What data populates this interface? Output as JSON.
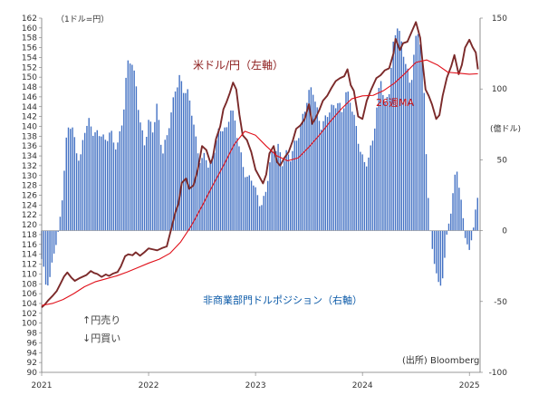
{
  "chart_data": {
    "type": "bar+line",
    "left_axis": {
      "unit_label": "（1ドル=円）",
      "min": 90,
      "max": 162,
      "step": 2,
      "ticks": [
        90,
        92,
        94,
        96,
        98,
        100,
        102,
        104,
        106,
        108,
        110,
        112,
        114,
        116,
        118,
        120,
        122,
        124,
        126,
        128,
        130,
        132,
        134,
        136,
        138,
        140,
        142,
        144,
        146,
        148,
        150,
        152,
        154,
        156,
        158,
        160,
        162
      ]
    },
    "right_axis": {
      "unit_label": "(億ドル)",
      "min": -100,
      "max": 150,
      "ticks": [
        -100,
        -50,
        0,
        50,
        100,
        150
      ]
    },
    "x_axis": {
      "min": 2021.0,
      "max": 2025.1,
      "ticks": [
        {
          "value": 2021,
          "label": "2021"
        },
        {
          "value": 2022,
          "label": "2022"
        },
        {
          "value": 2023,
          "label": "2023"
        },
        {
          "value": 2024,
          "label": "2024"
        },
        {
          "value": 2025,
          "label": "2025"
        }
      ]
    },
    "series": [
      {
        "name": "米ドル/円（左軸）",
        "kind": "line",
        "axis": "left",
        "color": "#7b2a2a",
        "points": [
          [
            2021.0,
            103.2
          ],
          [
            2021.03,
            103.8
          ],
          [
            2021.06,
            104.6
          ],
          [
            2021.1,
            105.5
          ],
          [
            2021.14,
            106.5
          ],
          [
            2021.18,
            108.2
          ],
          [
            2021.21,
            109.5
          ],
          [
            2021.24,
            110.3
          ],
          [
            2021.28,
            109.2
          ],
          [
            2021.31,
            108.6
          ],
          [
            2021.35,
            109.1
          ],
          [
            2021.38,
            109.4
          ],
          [
            2021.42,
            109.8
          ],
          [
            2021.46,
            110.6
          ],
          [
            2021.49,
            110.2
          ],
          [
            2021.52,
            110.0
          ],
          [
            2021.56,
            109.4
          ],
          [
            2021.6,
            109.9
          ],
          [
            2021.63,
            109.6
          ],
          [
            2021.67,
            110.1
          ],
          [
            2021.71,
            110.4
          ],
          [
            2021.74,
            111.5
          ],
          [
            2021.78,
            113.6
          ],
          [
            2021.81,
            114.0
          ],
          [
            2021.85,
            113.8
          ],
          [
            2021.88,
            114.4
          ],
          [
            2021.92,
            113.7
          ],
          [
            2021.96,
            114.4
          ],
          [
            2022.0,
            115.2
          ],
          [
            2022.04,
            115.0
          ],
          [
            2022.08,
            114.8
          ],
          [
            2022.13,
            115.3
          ],
          [
            2022.17,
            115.6
          ],
          [
            2022.21,
            119.0
          ],
          [
            2022.25,
            122.5
          ],
          [
            2022.28,
            124.3
          ],
          [
            2022.31,
            128.5
          ],
          [
            2022.35,
            129.4
          ],
          [
            2022.38,
            127.3
          ],
          [
            2022.42,
            128.0
          ],
          [
            2022.46,
            131.2
          ],
          [
            2022.5,
            136.0
          ],
          [
            2022.54,
            135.2
          ],
          [
            2022.58,
            132.5
          ],
          [
            2022.6,
            133.6
          ],
          [
            2022.63,
            137.4
          ],
          [
            2022.67,
            140.0
          ],
          [
            2022.7,
            143.5
          ],
          [
            2022.73,
            145.0
          ],
          [
            2022.76,
            146.8
          ],
          [
            2022.79,
            148.9
          ],
          [
            2022.82,
            147.5
          ],
          [
            2022.85,
            142.3
          ],
          [
            2022.88,
            138.2
          ],
          [
            2022.92,
            137.2
          ],
          [
            2022.96,
            134.8
          ],
          [
            2023.0,
            131.2
          ],
          [
            2023.04,
            129.6
          ],
          [
            2023.07,
            128.4
          ],
          [
            2023.1,
            130.2
          ],
          [
            2023.13,
            134.5
          ],
          [
            2023.17,
            136.0
          ],
          [
            2023.2,
            132.8
          ],
          [
            2023.23,
            132.0
          ],
          [
            2023.27,
            133.6
          ],
          [
            2023.31,
            134.8
          ],
          [
            2023.35,
            137.2
          ],
          [
            2023.38,
            139.5
          ],
          [
            2023.42,
            140.2
          ],
          [
            2023.46,
            141.5
          ],
          [
            2023.5,
            144.5
          ],
          [
            2023.53,
            140.5
          ],
          [
            2023.56,
            141.6
          ],
          [
            2023.6,
            143.5
          ],
          [
            2023.63,
            145.2
          ],
          [
            2023.67,
            146.2
          ],
          [
            2023.71,
            147.8
          ],
          [
            2023.75,
            149.2
          ],
          [
            2023.79,
            149.8
          ],
          [
            2023.83,
            150.2
          ],
          [
            2023.86,
            151.6
          ],
          [
            2023.89,
            148.4
          ],
          [
            2023.92,
            147.2
          ],
          [
            2023.96,
            142.0
          ],
          [
            2024.0,
            141.5
          ],
          [
            2024.04,
            145.2
          ],
          [
            2024.08,
            147.4
          ],
          [
            2024.13,
            149.8
          ],
          [
            2024.17,
            150.4
          ],
          [
            2024.21,
            151.4
          ],
          [
            2024.25,
            151.8
          ],
          [
            2024.29,
            154.8
          ],
          [
            2024.31,
            157.8
          ],
          [
            2024.35,
            155.5
          ],
          [
            2024.38,
            156.9
          ],
          [
            2024.42,
            157.2
          ],
          [
            2024.46,
            159.2
          ],
          [
            2024.5,
            161.2
          ],
          [
            2024.54,
            158.0
          ],
          [
            2024.56,
            153.5
          ],
          [
            2024.59,
            147.5
          ],
          [
            2024.62,
            146.2
          ],
          [
            2024.65,
            144.5
          ],
          [
            2024.69,
            141.5
          ],
          [
            2024.72,
            142.3
          ],
          [
            2024.75,
            146.2
          ],
          [
            2024.79,
            149.9
          ],
          [
            2024.83,
            152.2
          ],
          [
            2024.86,
            154.5
          ],
          [
            2024.9,
            150.6
          ],
          [
            2024.93,
            152.5
          ],
          [
            2024.96,
            156.0
          ],
          [
            2025.0,
            157.6
          ],
          [
            2025.03,
            156.1
          ],
          [
            2025.06,
            155.0
          ],
          [
            2025.08,
            151.6
          ]
        ]
      },
      {
        "name": "26週MA",
        "kind": "line",
        "axis": "left",
        "color": "#e0101a",
        "points": [
          [
            2021.0,
            103.6
          ],
          [
            2021.1,
            104.0
          ],
          [
            2021.2,
            104.8
          ],
          [
            2021.3,
            106.0
          ],
          [
            2021.4,
            107.4
          ],
          [
            2021.5,
            108.4
          ],
          [
            2021.6,
            109.0
          ],
          [
            2021.7,
            109.6
          ],
          [
            2021.8,
            110.4
          ],
          [
            2021.9,
            111.3
          ],
          [
            2022.0,
            112.2
          ],
          [
            2022.1,
            113.0
          ],
          [
            2022.2,
            114.2
          ],
          [
            2022.3,
            116.5
          ],
          [
            2022.4,
            119.8
          ],
          [
            2022.5,
            123.8
          ],
          [
            2022.6,
            128.0
          ],
          [
            2022.7,
            132.0
          ],
          [
            2022.8,
            136.3
          ],
          [
            2022.9,
            139.0
          ],
          [
            2023.0,
            138.2
          ],
          [
            2023.1,
            136.0
          ],
          [
            2023.2,
            134.0
          ],
          [
            2023.3,
            133.0
          ],
          [
            2023.4,
            133.6
          ],
          [
            2023.5,
            135.8
          ],
          [
            2023.6,
            138.3
          ],
          [
            2023.7,
            141.0
          ],
          [
            2023.8,
            143.5
          ],
          [
            2023.9,
            145.6
          ],
          [
            2024.0,
            146.2
          ],
          [
            2024.1,
            146.3
          ],
          [
            2024.2,
            147.3
          ],
          [
            2024.3,
            148.8
          ],
          [
            2024.4,
            150.8
          ],
          [
            2024.5,
            153.0
          ],
          [
            2024.6,
            153.5
          ],
          [
            2024.7,
            152.5
          ],
          [
            2024.8,
            151.0
          ],
          [
            2024.9,
            150.8
          ],
          [
            2025.0,
            150.6
          ],
          [
            2025.08,
            150.7
          ]
        ]
      },
      {
        "name": "非商業部門ドルポジション（右軸）",
        "kind": "bar",
        "axis": "right",
        "color": "#4472c4",
        "anchors": [
          [
            2021.0,
            -20
          ],
          [
            2021.04,
            -40
          ],
          [
            2021.08,
            -35
          ],
          [
            2021.12,
            -10
          ],
          [
            2021.16,
            0
          ],
          [
            2021.2,
            30
          ],
          [
            2021.24,
            70
          ],
          [
            2021.28,
            75
          ],
          [
            2021.32,
            60
          ],
          [
            2021.36,
            50
          ],
          [
            2021.4,
            70
          ],
          [
            2021.44,
            75
          ],
          [
            2021.48,
            70
          ],
          [
            2021.52,
            70
          ],
          [
            2021.56,
            70
          ],
          [
            2021.6,
            60
          ],
          [
            2021.64,
            70
          ],
          [
            2021.68,
            60
          ],
          [
            2021.72,
            65
          ],
          [
            2021.76,
            80
          ],
          [
            2021.8,
            115
          ],
          [
            2021.84,
            120
          ],
          [
            2021.88,
            105
          ],
          [
            2021.92,
            80
          ],
          [
            2021.96,
            60
          ],
          [
            2022.0,
            75
          ],
          [
            2022.04,
            70
          ],
          [
            2022.08,
            90
          ],
          [
            2022.13,
            55
          ],
          [
            2022.17,
            65
          ],
          [
            2022.21,
            80
          ],
          [
            2022.25,
            100
          ],
          [
            2022.29,
            110
          ],
          [
            2022.33,
            100
          ],
          [
            2022.37,
            95
          ],
          [
            2022.41,
            80
          ],
          [
            2022.45,
            60
          ],
          [
            2022.49,
            50
          ],
          [
            2022.53,
            55
          ],
          [
            2022.57,
            40
          ],
          [
            2022.61,
            55
          ],
          [
            2022.65,
            70
          ],
          [
            2022.69,
            75
          ],
          [
            2022.73,
            70
          ],
          [
            2022.77,
            85
          ],
          [
            2022.81,
            75
          ],
          [
            2022.85,
            60
          ],
          [
            2022.89,
            45
          ],
          [
            2022.93,
            35
          ],
          [
            2022.97,
            35
          ],
          [
            2023.01,
            25
          ],
          [
            2023.05,
            20
          ],
          [
            2023.09,
            25
          ],
          [
            2023.13,
            45
          ],
          [
            2023.17,
            55
          ],
          [
            2023.21,
            60
          ],
          [
            2023.25,
            50
          ],
          [
            2023.29,
            55
          ],
          [
            2023.33,
            50
          ],
          [
            2023.37,
            60
          ],
          [
            2023.41,
            70
          ],
          [
            2023.45,
            85
          ],
          [
            2023.49,
            95
          ],
          [
            2023.53,
            100
          ],
          [
            2023.57,
            85
          ],
          [
            2023.61,
            75
          ],
          [
            2023.65,
            80
          ],
          [
            2023.69,
            85
          ],
          [
            2023.73,
            85
          ],
          [
            2023.77,
            90
          ],
          [
            2023.81,
            85
          ],
          [
            2023.85,
            100
          ],
          [
            2023.89,
            90
          ],
          [
            2023.93,
            75
          ],
          [
            2023.97,
            60
          ],
          [
            2024.01,
            50
          ],
          [
            2024.05,
            50
          ],
          [
            2024.09,
            60
          ],
          [
            2024.13,
            80
          ],
          [
            2024.17,
            110
          ],
          [
            2024.21,
            90
          ],
          [
            2024.25,
            100
          ],
          [
            2024.29,
            130
          ],
          [
            2024.33,
            145
          ],
          [
            2024.37,
            130
          ],
          [
            2024.41,
            120
          ],
          [
            2024.45,
            100
          ],
          [
            2024.49,
            130
          ],
          [
            2024.53,
            140
          ],
          [
            2024.57,
            110
          ],
          [
            2024.6,
            50
          ],
          [
            2024.64,
            -10
          ],
          [
            2024.68,
            -25
          ],
          [
            2024.72,
            -45
          ],
          [
            2024.76,
            -25
          ],
          [
            2024.8,
            5
          ],
          [
            2024.84,
            20
          ],
          [
            2024.88,
            45
          ],
          [
            2024.92,
            20
          ],
          [
            2024.96,
            0
          ],
          [
            2025.0,
            -15
          ],
          [
            2025.04,
            5
          ],
          [
            2025.08,
            20
          ]
        ]
      }
    ],
    "annotations": {
      "usdjpy_label": "米ドル/円（左軸）",
      "ma_label": "26週MA",
      "position_label": "非商業部門ドルポジション（右軸）",
      "yen_sell_label": "↑円売り",
      "yen_buy_label": "↓円買い",
      "source_label": "(出所) Bloomberg"
    }
  }
}
